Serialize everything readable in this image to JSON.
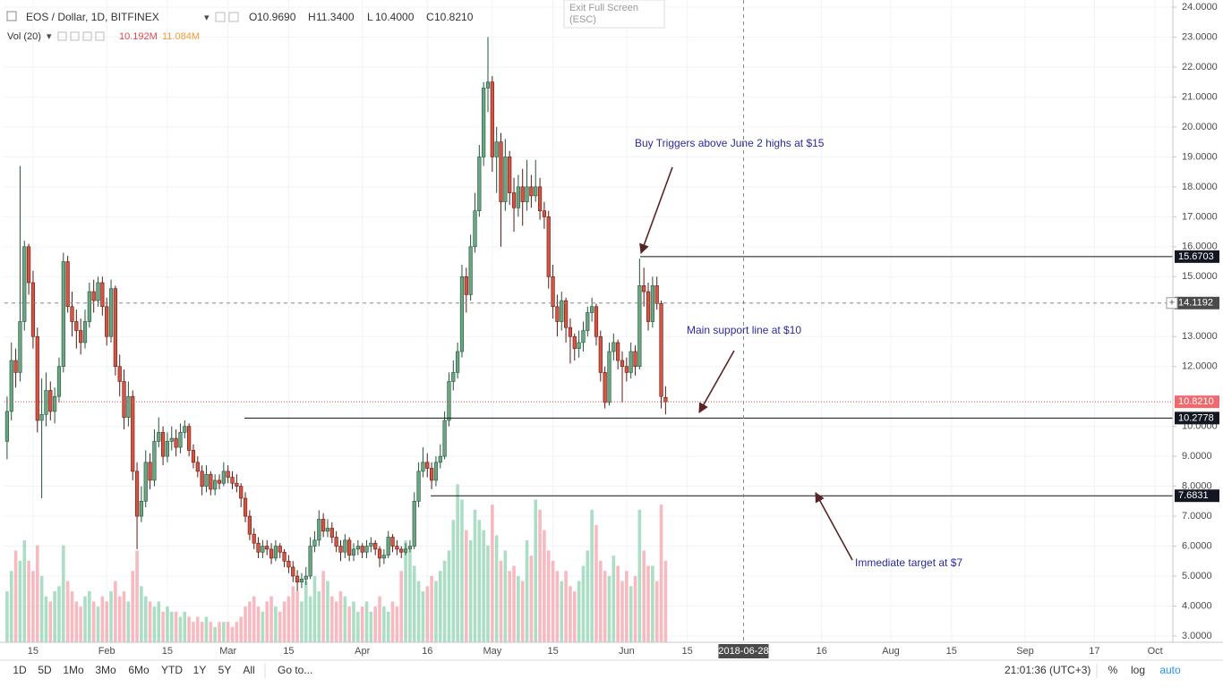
{
  "header": {
    "symbol": "EOS / Dollar, 1D, BITFINEX",
    "ohlc_legend": [
      {
        "k": "O",
        "v": "10.9690"
      },
      {
        "k": "H",
        "v": "11.3400"
      },
      {
        "k": "L",
        "v": "10.4000"
      },
      {
        "k": "C",
        "v": "10.8210"
      }
    ],
    "vol_label": "Vol (20)",
    "vol_value": "10.192M",
    "vol_ma": "11.084M"
  },
  "exit_full_screen": [
    "Exit Full Screen",
    "(ESC)"
  ],
  "toolbar": {
    "ranges": [
      "1D",
      "5D",
      "1Mo",
      "3Mo",
      "6Mo",
      "YTD",
      "1Y",
      "5Y",
      "All"
    ],
    "goto": "Go to...",
    "clock": "21:01:36 (UTC+3)",
    "options": [
      "%",
      "log",
      "auto"
    ]
  },
  "chart_data": {
    "type": "candlestick",
    "grid": true,
    "up_color": "#6ba583",
    "down_color": "#d75442",
    "volume_up_color": "#8fd3b0",
    "volume_down_color": "#f4a3ab",
    "xlim": [
      8.4,
      278.1
    ],
    "xticks": [
      {
        "value": 15,
        "label": "15"
      },
      {
        "value": 32,
        "label": "Feb"
      },
      {
        "value": 46,
        "label": "15"
      },
      {
        "value": 60,
        "label": "Mar"
      },
      {
        "value": 74,
        "label": "15"
      },
      {
        "value": 91,
        "label": "Apr"
      },
      {
        "value": 106,
        "label": "16"
      },
      {
        "value": 121,
        "label": "May"
      },
      {
        "value": 135,
        "label": "15"
      },
      {
        "value": 152,
        "label": "Jun"
      },
      {
        "value": 166,
        "label": "15"
      },
      {
        "value": 197,
        "label": "16"
      },
      {
        "value": 213,
        "label": "Aug"
      },
      {
        "value": 227,
        "label": "15"
      },
      {
        "value": 244,
        "label": "Sep"
      },
      {
        "value": 260,
        "label": "17"
      },
      {
        "value": 274,
        "label": "Oct"
      }
    ],
    "ylim": [
      2.79,
      24.24
    ],
    "yticks": [
      {
        "value": 24,
        "label": "24.0000"
      },
      {
        "value": 23,
        "label": "23.0000"
      },
      {
        "value": 22,
        "label": "22.0000"
      },
      {
        "value": 21,
        "label": "21.0000"
      },
      {
        "value": 20,
        "label": "20.0000"
      },
      {
        "value": 19,
        "label": "19.0000"
      },
      {
        "value": 18,
        "label": "18.0000"
      },
      {
        "value": 17,
        "label": "17.0000"
      },
      {
        "value": 16,
        "label": "16.0000"
      },
      {
        "value": 15,
        "label": "15.0000"
      },
      {
        "value": 13,
        "label": "13.0000"
      },
      {
        "value": 12,
        "label": "12.0000"
      },
      {
        "value": 10,
        "label": "10.0000"
      },
      {
        "value": 9,
        "label": "9.0000"
      },
      {
        "value": 8,
        "label": "8.0000"
      },
      {
        "value": 7,
        "label": "7.0000"
      },
      {
        "value": 6,
        "label": "6.0000"
      },
      {
        "value": 5,
        "label": "5.0000"
      },
      {
        "value": 4,
        "label": "4.0000"
      },
      {
        "value": 3,
        "label": "3.0000"
      }
    ],
    "volume_ylim": [
      0,
      126
    ],
    "x": [
      9,
      10,
      11,
      12,
      13,
      14,
      15,
      16,
      17,
      18,
      19,
      20,
      21,
      22,
      23,
      24,
      25,
      26,
      27,
      28,
      29,
      30,
      31,
      32,
      33,
      34,
      35,
      36,
      37,
      38,
      39,
      40,
      41,
      42,
      43,
      44,
      45,
      46,
      47,
      48,
      49,
      50,
      51,
      52,
      53,
      54,
      55,
      56,
      57,
      58,
      59,
      60,
      61,
      62,
      63,
      64,
      65,
      66,
      67,
      68,
      69,
      70,
      71,
      72,
      73,
      74,
      75,
      76,
      77,
      78,
      79,
      80,
      81,
      82,
      83,
      84,
      85,
      86,
      87,
      88,
      89,
      90,
      91,
      92,
      93,
      94,
      95,
      96,
      97,
      98,
      99,
      100,
      101,
      102,
      103,
      104,
      105,
      106,
      107,
      108,
      109,
      110,
      111,
      112,
      113,
      114,
      115,
      116,
      117,
      118,
      119,
      120,
      121,
      122,
      123,
      124,
      125,
      126,
      127,
      128,
      129,
      130,
      131,
      132,
      133,
      134,
      135,
      136,
      137,
      138,
      139,
      140,
      141,
      142,
      143,
      144,
      145,
      146,
      147,
      148,
      149,
      150,
      151,
      152,
      153,
      154,
      155,
      156,
      157,
      158,
      159,
      160,
      161
    ],
    "ohlc": [
      [
        9.5,
        11.0,
        8.9,
        10.5
      ],
      [
        10.5,
        12.8,
        10.2,
        12.2
      ],
      [
        12.2,
        12.6,
        11.3,
        11.8
      ],
      [
        11.8,
        18.7,
        11.5,
        13.5
      ],
      [
        13.5,
        16.2,
        13.2,
        16.0
      ],
      [
        16.0,
        16.1,
        14.4,
        14.8
      ],
      [
        14.8,
        15.2,
        12.6,
        13.0
      ],
      [
        13.0,
        13.3,
        9.8,
        10.2
      ],
      [
        10.2,
        11.6,
        7.6,
        10.4
      ],
      [
        10.4,
        11.8,
        10.0,
        11.2
      ],
      [
        11.2,
        11.5,
        10.2,
        10.5
      ],
      [
        10.5,
        11.3,
        10.1,
        11.0
      ],
      [
        11.0,
        12.3,
        10.8,
        12.0
      ],
      [
        12.0,
        15.8,
        11.8,
        15.5
      ],
      [
        15.5,
        15.7,
        13.8,
        14.0
      ],
      [
        14.0,
        14.5,
        13.0,
        13.5
      ],
      [
        13.5,
        13.9,
        12.6,
        13.2
      ],
      [
        13.2,
        13.6,
        12.4,
        12.8
      ],
      [
        12.8,
        13.9,
        12.6,
        13.5
      ],
      [
        13.5,
        14.8,
        13.3,
        14.5
      ],
      [
        14.5,
        14.9,
        13.8,
        14.2
      ],
      [
        14.2,
        15.0,
        14.0,
        14.8
      ],
      [
        14.8,
        15.0,
        13.7,
        14.0
      ],
      [
        14.0,
        14.3,
        12.7,
        13.0
      ],
      [
        13.0,
        14.9,
        12.8,
        14.6
      ],
      [
        14.6,
        14.7,
        11.7,
        12.0
      ],
      [
        12.0,
        12.4,
        11.0,
        11.5
      ],
      [
        11.5,
        11.9,
        9.9,
        10.3
      ],
      [
        10.3,
        11.5,
        10.0,
        11.0
      ],
      [
        11.0,
        11.2,
        8.2,
        8.5
      ],
      [
        8.5,
        8.8,
        5.9,
        7.0
      ],
      [
        7.0,
        8.0,
        6.8,
        7.5
      ],
      [
        7.5,
        9.2,
        7.3,
        8.8
      ],
      [
        8.8,
        9.1,
        7.9,
        8.2
      ],
      [
        8.2,
        9.9,
        8.0,
        9.5
      ],
      [
        9.5,
        10.3,
        9.3,
        9.8
      ],
      [
        9.8,
        10.0,
        8.7,
        9.0
      ],
      [
        9.0,
        9.8,
        8.8,
        9.5
      ],
      [
        9.5,
        10.0,
        9.2,
        9.6
      ],
      [
        9.6,
        9.9,
        9.0,
        9.3
      ],
      [
        9.3,
        10.1,
        9.1,
        9.8
      ],
      [
        9.8,
        10.2,
        9.6,
        10.0
      ],
      [
        10.0,
        10.1,
        9.0,
        9.2
      ],
      [
        9.2,
        9.4,
        8.6,
        8.8
      ],
      [
        8.8,
        9.0,
        8.3,
        8.5
      ],
      [
        8.5,
        8.7,
        7.7,
        8.0
      ],
      [
        8.0,
        8.7,
        7.8,
        8.4
      ],
      [
        8.4,
        8.5,
        7.7,
        7.9
      ],
      [
        7.9,
        8.4,
        7.7,
        8.2
      ],
      [
        8.2,
        8.4,
        7.9,
        8.1
      ],
      [
        8.1,
        8.8,
        8.0,
        8.5
      ],
      [
        8.5,
        8.7,
        8.1,
        8.3
      ],
      [
        8.3,
        8.5,
        7.9,
        8.1
      ],
      [
        8.1,
        8.4,
        7.8,
        8.0
      ],
      [
        8.0,
        8.1,
        7.3,
        7.6
      ],
      [
        7.6,
        7.8,
        6.8,
        7.0
      ],
      [
        7.0,
        7.2,
        6.2,
        6.4
      ],
      [
        6.4,
        6.6,
        5.9,
        6.1
      ],
      [
        6.1,
        6.3,
        5.6,
        5.8
      ],
      [
        5.8,
        6.2,
        5.6,
        6.0
      ],
      [
        6.0,
        6.2,
        5.7,
        5.9
      ],
      [
        5.9,
        6.1,
        5.4,
        5.6
      ],
      [
        5.6,
        6.2,
        5.5,
        6.0
      ],
      [
        6.0,
        6.1,
        5.6,
        5.8
      ],
      [
        5.8,
        5.9,
        5.3,
        5.5
      ],
      [
        5.5,
        5.7,
        5.1,
        5.3
      ],
      [
        5.3,
        5.5,
        4.8,
        5.0
      ],
      [
        5.0,
        5.2,
        4.5,
        4.8
      ],
      [
        4.8,
        5.1,
        4.6,
        4.9
      ],
      [
        4.9,
        5.3,
        4.7,
        5.0
      ],
      [
        5.0,
        6.3,
        4.9,
        6.0
      ],
      [
        6.0,
        6.5,
        5.8,
        6.2
      ],
      [
        6.2,
        7.2,
        6.0,
        6.9
      ],
      [
        6.9,
        7.1,
        6.3,
        6.5
      ],
      [
        6.5,
        6.9,
        6.3,
        6.6
      ],
      [
        6.6,
        6.8,
        6.1,
        6.3
      ],
      [
        6.3,
        6.5,
        5.8,
        6.0
      ],
      [
        6.0,
        6.2,
        5.5,
        5.8
      ],
      [
        5.8,
        6.4,
        5.6,
        6.2
      ],
      [
        6.2,
        6.3,
        5.5,
        5.7
      ],
      [
        5.7,
        6.1,
        5.5,
        5.9
      ],
      [
        5.9,
        6.2,
        5.7,
        6.0
      ],
      [
        6.0,
        6.1,
        5.6,
        5.8
      ],
      [
        5.8,
        6.2,
        5.6,
        6.0
      ],
      [
        6.0,
        6.3,
        5.8,
        6.1
      ],
      [
        6.1,
        6.2,
        5.7,
        5.9
      ],
      [
        5.9,
        6.0,
        5.3,
        5.6
      ],
      [
        5.6,
        5.9,
        5.4,
        5.7
      ],
      [
        5.7,
        6.5,
        5.6,
        6.3
      ],
      [
        6.3,
        6.4,
        5.8,
        6.0
      ],
      [
        6.0,
        6.2,
        5.7,
        5.9
      ],
      [
        5.9,
        6.0,
        5.6,
        5.8
      ],
      [
        5.8,
        6.1,
        5.7,
        5.9
      ],
      [
        5.9,
        6.2,
        5.8,
        6.0
      ],
      [
        6.0,
        7.8,
        5.9,
        7.5
      ],
      [
        7.5,
        8.8,
        7.3,
        8.5
      ],
      [
        8.5,
        9.3,
        8.3,
        8.8
      ],
      [
        8.8,
        9.1,
        8.3,
        8.6
      ],
      [
        8.6,
        8.8,
        7.9,
        8.2
      ],
      [
        8.2,
        9.0,
        8.0,
        8.8
      ],
      [
        8.8,
        9.4,
        8.6,
        9.0
      ],
      [
        9.0,
        10.5,
        8.9,
        10.2
      ],
      [
        10.2,
        11.8,
        10.0,
        11.5
      ],
      [
        11.5,
        12.2,
        11.2,
        11.8
      ],
      [
        11.8,
        12.8,
        11.6,
        12.5
      ],
      [
        12.5,
        15.4,
        12.3,
        15.0
      ],
      [
        15.0,
        15.3,
        13.8,
        14.4
      ],
      [
        14.4,
        16.4,
        14.2,
        16.0
      ],
      [
        16.0,
        17.8,
        15.8,
        17.2
      ],
      [
        17.2,
        19.4,
        17.0,
        19.0
      ],
      [
        19.0,
        21.5,
        18.7,
        21.3
      ],
      [
        21.3,
        23.0,
        20.5,
        21.5
      ],
      [
        21.5,
        21.7,
        18.5,
        19.0
      ],
      [
        19.0,
        20.0,
        17.8,
        19.5
      ],
      [
        19.5,
        19.8,
        16.0,
        17.5
      ],
      [
        17.5,
        19.6,
        17.2,
        19.0
      ],
      [
        19.0,
        19.2,
        17.4,
        17.8
      ],
      [
        17.8,
        18.3,
        16.5,
        17.3
      ],
      [
        17.3,
        18.4,
        17.0,
        18.0
      ],
      [
        18.0,
        18.6,
        16.7,
        17.5
      ],
      [
        17.5,
        18.9,
        17.2,
        18.0
      ],
      [
        18.0,
        18.4,
        17.3,
        17.7
      ],
      [
        17.7,
        18.9,
        17.5,
        18.0
      ],
      [
        18.0,
        18.3,
        16.9,
        17.2
      ],
      [
        17.2,
        17.5,
        16.6,
        17.0
      ],
      [
        17.0,
        17.2,
        14.6,
        15.0
      ],
      [
        15.0,
        15.4,
        13.6,
        14.0
      ],
      [
        14.0,
        14.4,
        13.0,
        13.5
      ],
      [
        13.5,
        14.5,
        13.2,
        14.2
      ],
      [
        14.2,
        14.3,
        12.8,
        13.3
      ],
      [
        13.3,
        13.6,
        12.1,
        13.0
      ],
      [
        13.0,
        13.1,
        12.2,
        12.6
      ],
      [
        12.6,
        13.2,
        12.3,
        12.8
      ],
      [
        12.8,
        13.5,
        12.5,
        13.2
      ],
      [
        13.2,
        14.0,
        13.0,
        13.8
      ],
      [
        13.8,
        14.3,
        13.5,
        14.0
      ],
      [
        14.0,
        14.1,
        12.7,
        13.0
      ],
      [
        13.0,
        13.2,
        11.5,
        11.8
      ],
      [
        11.8,
        12.0,
        10.6,
        10.8
      ],
      [
        10.8,
        12.8,
        10.7,
        12.5
      ],
      [
        12.5,
        13.1,
        12.2,
        12.8
      ],
      [
        12.8,
        12.9,
        11.9,
        12.2
      ],
      [
        12.2,
        12.5,
        10.8,
        12.0
      ],
      [
        12.0,
        12.3,
        11.5,
        11.8
      ],
      [
        11.8,
        12.8,
        11.6,
        12.5
      ],
      [
        12.5,
        12.7,
        11.7,
        12.0
      ],
      [
        12.0,
        15.6,
        11.9,
        14.7
      ],
      [
        14.7,
        15.3,
        14.0,
        14.5
      ],
      [
        14.5,
        14.8,
        13.2,
        13.5
      ],
      [
        13.5,
        15.0,
        13.3,
        14.7
      ],
      [
        14.7,
        15.0,
        13.9,
        14.1
      ],
      [
        14.1,
        14.2,
        10.6,
        11.0
      ],
      [
        10.969,
        11.34,
        10.4,
        10.821
      ]
    ],
    "volume": [
      10,
      14,
      18,
      16,
      20,
      16,
      14,
      19,
      13,
      9,
      8,
      10,
      11,
      19,
      12,
      10,
      8,
      7,
      9,
      10,
      8,
      7,
      9,
      8,
      10,
      12,
      9,
      10,
      8,
      14,
      18,
      11,
      9,
      8,
      7,
      8,
      6,
      7,
      6,
      6,
      5,
      6,
      5,
      4,
      5,
      4,
      5,
      4,
      3,
      4,
      4,
      4,
      3,
      4,
      5,
      7,
      8,
      9,
      7,
      6,
      8,
      9,
      7,
      6,
      8,
      9,
      11,
      10,
      8,
      12,
      9,
      13,
      10,
      14,
      12,
      9,
      8,
      10,
      9,
      7,
      8,
      6,
      7,
      8,
      6,
      7,
      9,
      7,
      6,
      8,
      7,
      14,
      20,
      18,
      15,
      12,
      10,
      11,
      13,
      12,
      14,
      16,
      18,
      24,
      31,
      28,
      22,
      20,
      26,
      24,
      22,
      19,
      27,
      21,
      16,
      18,
      14,
      15,
      13,
      12,
      20,
      17,
      28,
      26,
      22,
      18,
      16,
      14,
      12,
      14,
      11,
      10,
      12,
      15,
      18,
      26,
      23,
      16,
      14,
      13,
      17,
      15,
      12,
      14,
      11,
      13,
      26,
      18,
      15,
      15,
      12,
      27,
      16
    ],
    "price_lines": [
      15.6703,
      10.2778,
      7.6831
    ],
    "last_price": {
      "value": 10.821,
      "label": "10.8210"
    },
    "crosshair": {
      "x": {
        "value": 179,
        "label": "2018-06-28"
      },
      "y": 14.1192
    },
    "annotations": [
      "Buy Triggers above June 2 highs at $15",
      "Main support line at $10",
      "Immediate target at $7"
    ]
  }
}
